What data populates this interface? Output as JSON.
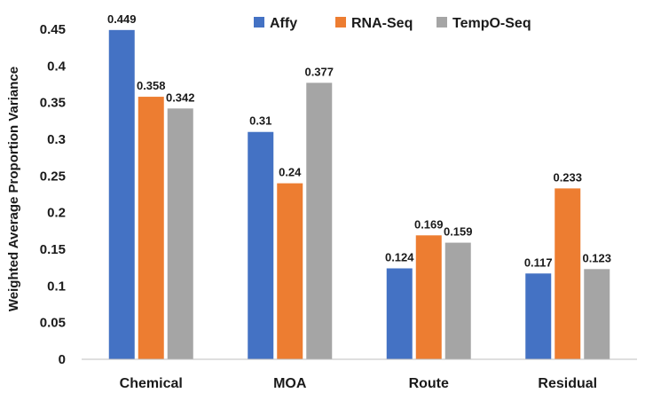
{
  "chart_data": {
    "type": "bar",
    "title": "",
    "xlabel": "",
    "ylabel": "Weighted Average Proportion Variance",
    "ylim": [
      0,
      0.45
    ],
    "yticks": [
      "0",
      "0.05",
      "0.1",
      "0.15",
      "0.2",
      "0.25",
      "0.3",
      "0.35",
      "0.4",
      "0.45"
    ],
    "grid": false,
    "legend_position": "top-right",
    "categories": [
      "Chemical",
      "MOA",
      "Route",
      "Residual"
    ],
    "series": [
      {
        "name": "Affy",
        "color": "#4472C4",
        "values": [
          0.449,
          0.31,
          0.124,
          0.117
        ],
        "labels": [
          "0.449",
          "0.31",
          "0.124",
          "0.117"
        ]
      },
      {
        "name": "RNA-Seq",
        "color": "#ED7D31",
        "values": [
          0.358,
          0.24,
          0.169,
          0.233
        ],
        "labels": [
          "0.358",
          "0.24",
          "0.169",
          "0.233"
        ]
      },
      {
        "name": "TempO-Seq",
        "color": "#A5A5A5",
        "values": [
          0.342,
          0.377,
          0.159,
          0.123
        ],
        "labels": [
          "0.342",
          "0.377",
          "0.159",
          "0.123"
        ]
      }
    ]
  }
}
